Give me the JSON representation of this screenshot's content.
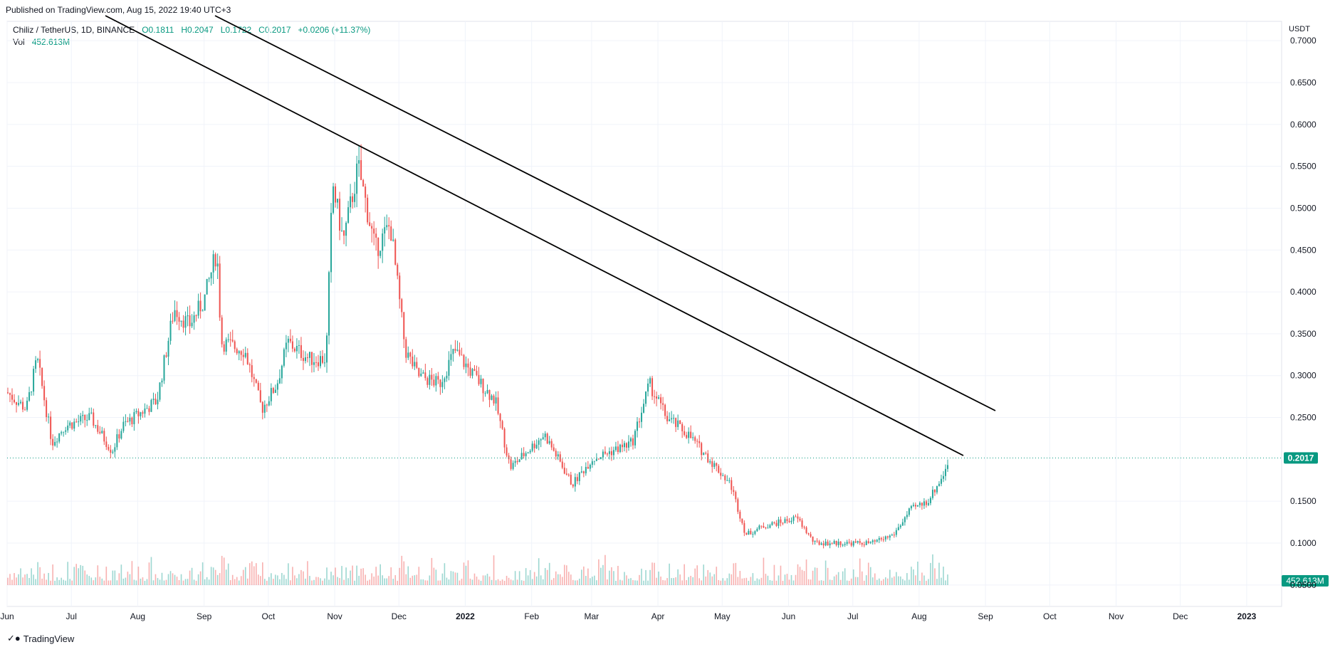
{
  "header": {
    "published": "Published on TradingView.com, Aug 15, 2022 19:40 UTC+3",
    "symbol": "Chiliz / TetherUS, 1D, BINANCE",
    "open": "O0.1811",
    "high": "H0.2047",
    "low": "L0.1722",
    "close": "C0.2017",
    "change": "+0.0206 (+11.37%)",
    "vol_label": "Vol",
    "vol_value": "452.613M"
  },
  "currency": "USDT",
  "footer": {
    "brand": "TradingView"
  },
  "colors": {
    "up": "#26a69a",
    "down": "#ef5350",
    "accent": "#089981",
    "grid": "#f0f3fa",
    "trendline": "#000000"
  },
  "chart_data": {
    "type": "candlestick",
    "symbol": "Chiliz / TetherUS",
    "interval": "1D",
    "exchange": "BINANCE",
    "y_ticks": [
      "0.7000",
      "0.6500",
      "0.6000",
      "0.5500",
      "0.5000",
      "0.4500",
      "0.4000",
      "0.3500",
      "0.3000",
      "0.2500",
      "0.1500",
      "0.1000",
      "0.0500"
    ],
    "ylim": [
      0.05,
      0.7
    ],
    "x_ticks": [
      "Jun",
      "Jul",
      "Aug",
      "Sep",
      "Oct",
      "Nov",
      "Dec",
      "2022",
      "Feb",
      "Mar",
      "Apr",
      "May",
      "Jun",
      "Jul",
      "Aug",
      "Sep",
      "Oct",
      "Nov",
      "Dec",
      "2023"
    ],
    "last_price_label": "0.2017",
    "last_volume_label": "452.613M",
    "price_path": [
      {
        "date": "2021-06-01",
        "close": 0.28
      },
      {
        "date": "2021-06-10",
        "close": 0.26
      },
      {
        "date": "2021-06-15",
        "close": 0.32
      },
      {
        "date": "2021-06-22",
        "close": 0.22
      },
      {
        "date": "2021-06-28",
        "close": 0.24
      },
      {
        "date": "2021-07-10",
        "close": 0.25
      },
      {
        "date": "2021-07-20",
        "close": 0.21
      },
      {
        "date": "2021-07-25",
        "close": 0.24
      },
      {
        "date": "2021-08-10",
        "close": 0.27
      },
      {
        "date": "2021-08-18",
        "close": 0.38
      },
      {
        "date": "2021-08-25",
        "close": 0.36
      },
      {
        "date": "2021-09-01",
        "close": 0.39
      },
      {
        "date": "2021-09-07",
        "close": 0.45
      },
      {
        "date": "2021-09-09",
        "close": 0.34
      },
      {
        "date": "2021-09-20",
        "close": 0.33
      },
      {
        "date": "2021-09-28",
        "close": 0.26
      },
      {
        "date": "2021-10-05",
        "close": 0.29
      },
      {
        "date": "2021-10-10",
        "close": 0.34
      },
      {
        "date": "2021-10-20",
        "close": 0.32
      },
      {
        "date": "2021-10-28",
        "close": 0.32
      },
      {
        "date": "2021-10-31",
        "close": 0.53
      },
      {
        "date": "2021-11-05",
        "close": 0.46
      },
      {
        "date": "2021-11-12",
        "close": 0.55
      },
      {
        "date": "2021-11-20",
        "close": 0.45
      },
      {
        "date": "2021-11-27",
        "close": 0.48
      },
      {
        "date": "2021-12-04",
        "close": 0.33
      },
      {
        "date": "2021-12-10",
        "close": 0.3
      },
      {
        "date": "2021-12-20",
        "close": 0.29
      },
      {
        "date": "2021-12-27",
        "close": 0.33
      },
      {
        "date": "2022-01-05",
        "close": 0.3
      },
      {
        "date": "2022-01-15",
        "close": 0.27
      },
      {
        "date": "2022-01-22",
        "close": 0.19
      },
      {
        "date": "2022-02-07",
        "close": 0.23
      },
      {
        "date": "2022-02-20",
        "close": 0.17
      },
      {
        "date": "2022-03-01",
        "close": 0.2
      },
      {
        "date": "2022-03-20",
        "close": 0.22
      },
      {
        "date": "2022-03-28",
        "close": 0.29
      },
      {
        "date": "2022-04-05",
        "close": 0.25
      },
      {
        "date": "2022-04-15",
        "close": 0.23
      },
      {
        "date": "2022-04-25",
        "close": 0.2
      },
      {
        "date": "2022-05-05",
        "close": 0.17
      },
      {
        "date": "2022-05-12",
        "close": 0.11
      },
      {
        "date": "2022-05-20",
        "close": 0.12
      },
      {
        "date": "2022-06-05",
        "close": 0.13
      },
      {
        "date": "2022-06-13",
        "close": 0.1
      },
      {
        "date": "2022-06-25",
        "close": 0.1
      },
      {
        "date": "2022-07-10",
        "close": 0.1
      },
      {
        "date": "2022-07-20",
        "close": 0.11
      },
      {
        "date": "2022-07-28",
        "close": 0.14
      },
      {
        "date": "2022-08-05",
        "close": 0.15
      },
      {
        "date": "2022-08-12",
        "close": 0.18
      },
      {
        "date": "2022-08-15",
        "close": 0.2017
      }
    ]
  }
}
